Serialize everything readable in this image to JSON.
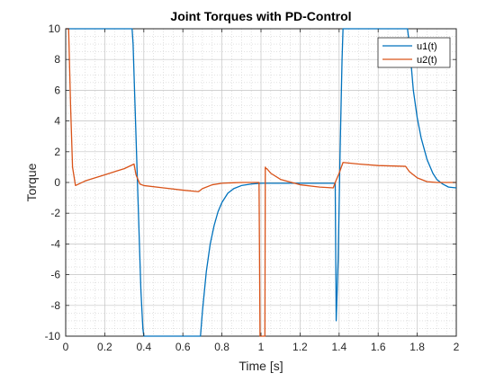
{
  "chart_data": {
    "type": "line",
    "title": "Joint Torques with PD-Control",
    "xlabel": "Time [s]",
    "ylabel": "Torque",
    "xlim": [
      0,
      2
    ],
    "ylim": [
      -10,
      10
    ],
    "x_ticks": [
      0,
      0.2,
      0.4,
      0.6,
      0.8,
      1,
      1.2,
      1.4,
      1.6,
      1.8,
      2
    ],
    "y_ticks": [
      -10,
      -8,
      -6,
      -4,
      -2,
      0,
      2,
      4,
      6,
      8,
      10
    ],
    "grid": true,
    "minor_grid": true,
    "legend_position": "top-right",
    "series": [
      {
        "name": "u1(t)",
        "color": "#0072BD",
        "x": [
          0,
          0.34,
          0.345,
          0.355,
          0.37,
          0.385,
          0.395,
          0.4,
          0.69,
          0.7,
          0.72,
          0.74,
          0.76,
          0.78,
          0.8,
          0.83,
          0.86,
          0.9,
          0.95,
          1.0,
          1.38,
          1.385,
          1.395,
          1.405,
          1.415,
          1.42,
          1.75,
          1.76,
          1.78,
          1.8,
          1.82,
          1.85,
          1.88,
          1.9,
          1.93,
          1.96,
          2.0
        ],
        "y": [
          10,
          10,
          9.0,
          5.0,
          -1.0,
          -7.0,
          -9.5,
          -10,
          -10,
          -8.4,
          -5.8,
          -4.0,
          -2.8,
          -1.9,
          -1.3,
          -0.7,
          -0.4,
          -0.2,
          -0.1,
          -0.05,
          -0.05,
          -9.0,
          -5.0,
          2.0,
          8.0,
          10,
          10,
          9.0,
          6.0,
          4.2,
          2.9,
          1.5,
          0.6,
          0.2,
          -0.1,
          -0.3,
          -0.35
        ]
      },
      {
        "name": "u2(t)",
        "color": "#D95319",
        "x": [
          0,
          0.015,
          0.025,
          0.035,
          0.05,
          0.1,
          0.2,
          0.3,
          0.35,
          0.36,
          0.37,
          0.38,
          0.4,
          0.5,
          0.6,
          0.68,
          0.7,
          0.75,
          0.8,
          0.9,
          0.99,
          0.995,
          1.0,
          1.02,
          1.022,
          1.026,
          1.03,
          1.05,
          1.1,
          1.2,
          1.3,
          1.37,
          1.38,
          1.4,
          1.42,
          1.5,
          1.6,
          1.74,
          1.76,
          1.8,
          1.85,
          1.9,
          1.95,
          2.0
        ],
        "y": [
          10,
          10,
          5.0,
          1.0,
          -0.2,
          0.1,
          0.5,
          0.9,
          1.2,
          0.5,
          0.2,
          -0.1,
          -0.2,
          -0.35,
          -0.5,
          -0.6,
          -0.4,
          -0.15,
          -0.05,
          0,
          0,
          -10,
          -10,
          -10,
          1.0,
          0.9,
          0.9,
          0.6,
          0.2,
          -0.15,
          -0.3,
          -0.35,
          0,
          0.6,
          1.3,
          1.2,
          1.1,
          1.05,
          0.7,
          0.3,
          0.05,
          0,
          0,
          0
        ]
      }
    ]
  }
}
